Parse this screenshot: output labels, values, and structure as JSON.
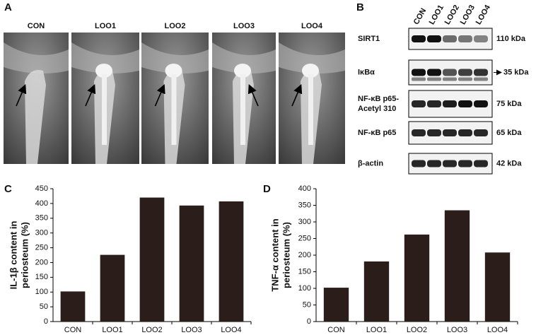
{
  "panel_labels": [
    "A",
    "B",
    "C",
    "D"
  ],
  "xray": {
    "labels": [
      "CON",
      "LOO1",
      "LOO2",
      "LOO3",
      "LOO4"
    ]
  },
  "blot": {
    "lanes": [
      "CON",
      "LOO1",
      "LOO2",
      "LOO3",
      "LOO4"
    ],
    "rows": [
      {
        "name": [
          "SIRT1"
        ],
        "size": "110 kDa"
      },
      {
        "name": [
          "IκBα"
        ],
        "size": "35 kDa"
      },
      {
        "name": [
          "NF-κB p65-",
          "Acetyl 310"
        ],
        "size": "75 kDa"
      },
      {
        "name": [
          "NF-κB p65"
        ],
        "size": "65 kDa"
      },
      {
        "name": [
          "β-actin"
        ],
        "size": "42 kDa"
      }
    ]
  },
  "chart_data": [
    {
      "type": "bar",
      "ylabel": [
        "IL-1β content in",
        "periosteum (%)"
      ],
      "categories": [
        "CON",
        "LOO1",
        "LOO2",
        "LOO3",
        "LOO4"
      ],
      "values": [
        102,
        226,
        420,
        393,
        407
      ],
      "color": "#2b1d1a",
      "ylim": [
        0,
        450
      ],
      "yticks": [
        0,
        50,
        100,
        150,
        200,
        250,
        300,
        350,
        400,
        450
      ]
    },
    {
      "type": "bar",
      "ylabel": [
        "TNF-α content in",
        "periosteum (%)"
      ],
      "categories": [
        "CON",
        "LOO1",
        "LOO2",
        "LOO3",
        "LOO4"
      ],
      "values": [
        102,
        181,
        262,
        335,
        208
      ],
      "color": "#2b1d1a",
      "ylim": [
        0,
        400
      ],
      "yticks": [
        0,
        50,
        100,
        150,
        200,
        250,
        300,
        350,
        400
      ]
    }
  ]
}
